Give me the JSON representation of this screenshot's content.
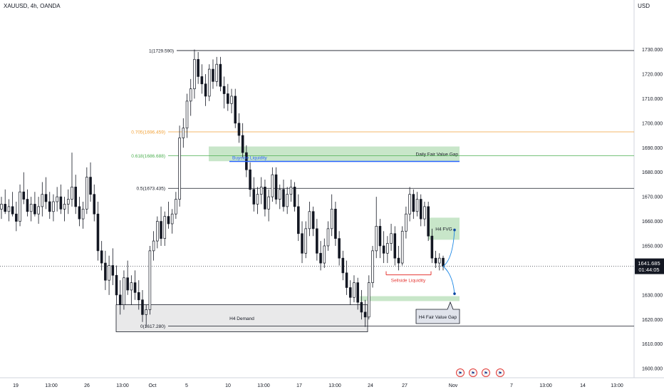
{
  "chart_data": {
    "type": "candlestick",
    "title": "XAUUSD, 4h, OANDA",
    "currency": "USD",
    "ylim": [
      1598,
      1738
    ],
    "y_ticks": [
      1600,
      1610,
      1620,
      1630,
      1640,
      1650,
      1660,
      1670,
      1680,
      1690,
      1700,
      1710,
      1720,
      1730
    ],
    "x_ticks": [
      "19",
      "13:00",
      "26",
      "13:00",
      "Oct",
      "5",
      "10",
      "13:00",
      "17",
      "13:00",
      "24",
      "27",
      "Nov",
      "7",
      "13:00",
      "14",
      "13:00"
    ],
    "candles": [
      {
        "o": 1665,
        "h": 1670,
        "l": 1661,
        "c": 1667
      },
      {
        "o": 1667,
        "h": 1673,
        "l": 1663,
        "c": 1664
      },
      {
        "o": 1664,
        "h": 1669,
        "l": 1660,
        "c": 1666
      },
      {
        "o": 1666,
        "h": 1672,
        "l": 1662,
        "c": 1663
      },
      {
        "o": 1663,
        "h": 1668,
        "l": 1656,
        "c": 1660
      },
      {
        "o": 1660,
        "h": 1675,
        "l": 1658,
        "c": 1672
      },
      {
        "o": 1672,
        "h": 1680,
        "l": 1667,
        "c": 1669
      },
      {
        "o": 1669,
        "h": 1673,
        "l": 1662,
        "c": 1664
      },
      {
        "o": 1664,
        "h": 1670,
        "l": 1660,
        "c": 1667
      },
      {
        "o": 1667,
        "h": 1672,
        "l": 1662,
        "c": 1663
      },
      {
        "o": 1663,
        "h": 1670,
        "l": 1659,
        "c": 1666
      },
      {
        "o": 1666,
        "h": 1676,
        "l": 1662,
        "c": 1671
      },
      {
        "o": 1671,
        "h": 1678,
        "l": 1665,
        "c": 1668
      },
      {
        "o": 1668,
        "h": 1672,
        "l": 1661,
        "c": 1664
      },
      {
        "o": 1664,
        "h": 1671,
        "l": 1660,
        "c": 1668
      },
      {
        "o": 1668,
        "h": 1674,
        "l": 1664,
        "c": 1670
      },
      {
        "o": 1670,
        "h": 1675,
        "l": 1663,
        "c": 1665
      },
      {
        "o": 1665,
        "h": 1670,
        "l": 1660,
        "c": 1667
      },
      {
        "o": 1667,
        "h": 1673,
        "l": 1663,
        "c": 1669
      },
      {
        "o": 1669,
        "h": 1688,
        "l": 1666,
        "c": 1674
      },
      {
        "o": 1674,
        "h": 1679,
        "l": 1663,
        "c": 1666
      },
      {
        "o": 1666,
        "h": 1670,
        "l": 1658,
        "c": 1661
      },
      {
        "o": 1661,
        "h": 1668,
        "l": 1657,
        "c": 1665
      },
      {
        "o": 1665,
        "h": 1682,
        "l": 1663,
        "c": 1678
      },
      {
        "o": 1678,
        "h": 1684,
        "l": 1668,
        "c": 1671
      },
      {
        "o": 1671,
        "h": 1675,
        "l": 1660,
        "c": 1663
      },
      {
        "o": 1663,
        "h": 1668,
        "l": 1644,
        "c": 1648
      },
      {
        "o": 1648,
        "h": 1652,
        "l": 1640,
        "c": 1643
      },
      {
        "o": 1643,
        "h": 1648,
        "l": 1632,
        "c": 1636
      },
      {
        "o": 1636,
        "h": 1646,
        "l": 1630,
        "c": 1642
      },
      {
        "o": 1642,
        "h": 1649,
        "l": 1634,
        "c": 1638
      },
      {
        "o": 1638,
        "h": 1642,
        "l": 1626,
        "c": 1630
      },
      {
        "o": 1630,
        "h": 1636,
        "l": 1622,
        "c": 1626
      },
      {
        "o": 1626,
        "h": 1640,
        "l": 1624,
        "c": 1637
      },
      {
        "o": 1637,
        "h": 1644,
        "l": 1630,
        "c": 1632
      },
      {
        "o": 1632,
        "h": 1638,
        "l": 1626,
        "c": 1635
      },
      {
        "o": 1635,
        "h": 1640,
        "l": 1628,
        "c": 1631
      },
      {
        "o": 1631,
        "h": 1636,
        "l": 1624,
        "c": 1628
      },
      {
        "o": 1628,
        "h": 1632,
        "l": 1619,
        "c": 1622
      },
      {
        "o": 1622,
        "h": 1626,
        "l": 1617,
        "c": 1624
      },
      {
        "o": 1624,
        "h": 1650,
        "l": 1622,
        "c": 1648
      },
      {
        "o": 1648,
        "h": 1656,
        "l": 1644,
        "c": 1652
      },
      {
        "o": 1652,
        "h": 1662,
        "l": 1649,
        "c": 1660
      },
      {
        "o": 1660,
        "h": 1666,
        "l": 1650,
        "c": 1653
      },
      {
        "o": 1653,
        "h": 1664,
        "l": 1650,
        "c": 1662
      },
      {
        "o": 1662,
        "h": 1668,
        "l": 1657,
        "c": 1659
      },
      {
        "o": 1659,
        "h": 1665,
        "l": 1655,
        "c": 1663
      },
      {
        "o": 1663,
        "h": 1672,
        "l": 1661,
        "c": 1669
      },
      {
        "o": 1669,
        "h": 1699,
        "l": 1666,
        "c": 1694
      },
      {
        "o": 1694,
        "h": 1702,
        "l": 1690,
        "c": 1698
      },
      {
        "o": 1698,
        "h": 1712,
        "l": 1694,
        "c": 1709
      },
      {
        "o": 1709,
        "h": 1718,
        "l": 1703,
        "c": 1714
      },
      {
        "o": 1714,
        "h": 1730,
        "l": 1710,
        "c": 1726
      },
      {
        "o": 1726,
        "h": 1729,
        "l": 1716,
        "c": 1719
      },
      {
        "o": 1719,
        "h": 1724,
        "l": 1712,
        "c": 1716
      },
      {
        "o": 1716,
        "h": 1720,
        "l": 1707,
        "c": 1711
      },
      {
        "o": 1711,
        "h": 1724,
        "l": 1709,
        "c": 1722
      },
      {
        "o": 1722,
        "h": 1726,
        "l": 1714,
        "c": 1717
      },
      {
        "o": 1717,
        "h": 1727,
        "l": 1715,
        "c": 1724
      },
      {
        "o": 1724,
        "h": 1727,
        "l": 1713,
        "c": 1715
      },
      {
        "o": 1715,
        "h": 1719,
        "l": 1706,
        "c": 1712
      },
      {
        "o": 1712,
        "h": 1716,
        "l": 1705,
        "c": 1708
      },
      {
        "o": 1708,
        "h": 1714,
        "l": 1704,
        "c": 1711
      },
      {
        "o": 1711,
        "h": 1714,
        "l": 1698,
        "c": 1700
      },
      {
        "o": 1700,
        "h": 1704,
        "l": 1692,
        "c": 1695
      },
      {
        "o": 1695,
        "h": 1700,
        "l": 1686,
        "c": 1688
      },
      {
        "o": 1688,
        "h": 1691,
        "l": 1678,
        "c": 1681
      },
      {
        "o": 1681,
        "h": 1684,
        "l": 1670,
        "c": 1673
      },
      {
        "o": 1673,
        "h": 1678,
        "l": 1664,
        "c": 1667
      },
      {
        "o": 1667,
        "h": 1674,
        "l": 1663,
        "c": 1671
      },
      {
        "o": 1671,
        "h": 1678,
        "l": 1667,
        "c": 1674
      },
      {
        "o": 1674,
        "h": 1677,
        "l": 1662,
        "c": 1665
      },
      {
        "o": 1665,
        "h": 1673,
        "l": 1660,
        "c": 1670
      },
      {
        "o": 1670,
        "h": 1682,
        "l": 1668,
        "c": 1679
      },
      {
        "o": 1679,
        "h": 1682,
        "l": 1667,
        "c": 1669
      },
      {
        "o": 1669,
        "h": 1675,
        "l": 1665,
        "c": 1673
      },
      {
        "o": 1673,
        "h": 1677,
        "l": 1664,
        "c": 1666
      },
      {
        "o": 1666,
        "h": 1674,
        "l": 1663,
        "c": 1671
      },
      {
        "o": 1671,
        "h": 1677,
        "l": 1668,
        "c": 1674
      },
      {
        "o": 1674,
        "h": 1676,
        "l": 1664,
        "c": 1666
      },
      {
        "o": 1666,
        "h": 1671,
        "l": 1652,
        "c": 1655
      },
      {
        "o": 1655,
        "h": 1660,
        "l": 1643,
        "c": 1647
      },
      {
        "o": 1647,
        "h": 1660,
        "l": 1645,
        "c": 1657
      },
      {
        "o": 1657,
        "h": 1668,
        "l": 1654,
        "c": 1664
      },
      {
        "o": 1664,
        "h": 1666,
        "l": 1654,
        "c": 1657
      },
      {
        "o": 1657,
        "h": 1661,
        "l": 1644,
        "c": 1647
      },
      {
        "o": 1647,
        "h": 1652,
        "l": 1640,
        "c": 1643
      },
      {
        "o": 1643,
        "h": 1653,
        "l": 1641,
        "c": 1650
      },
      {
        "o": 1650,
        "h": 1660,
        "l": 1648,
        "c": 1657
      },
      {
        "o": 1657,
        "h": 1671,
        "l": 1654,
        "c": 1665
      },
      {
        "o": 1665,
        "h": 1668,
        "l": 1650,
        "c": 1653
      },
      {
        "o": 1653,
        "h": 1656,
        "l": 1642,
        "c": 1645
      },
      {
        "o": 1645,
        "h": 1648,
        "l": 1636,
        "c": 1639
      },
      {
        "o": 1639,
        "h": 1644,
        "l": 1630,
        "c": 1633
      },
      {
        "o": 1633,
        "h": 1636,
        "l": 1626,
        "c": 1629
      },
      {
        "o": 1629,
        "h": 1638,
        "l": 1627,
        "c": 1635
      },
      {
        "o": 1635,
        "h": 1637,
        "l": 1624,
        "c": 1627
      },
      {
        "o": 1627,
        "h": 1632,
        "l": 1620,
        "c": 1623
      },
      {
        "o": 1623,
        "h": 1628,
        "l": 1617,
        "c": 1621
      },
      {
        "o": 1621,
        "h": 1638,
        "l": 1620,
        "c": 1635
      },
      {
        "o": 1635,
        "h": 1650,
        "l": 1633,
        "c": 1648
      },
      {
        "o": 1648,
        "h": 1670,
        "l": 1645,
        "c": 1658
      },
      {
        "o": 1658,
        "h": 1661,
        "l": 1645,
        "c": 1650
      },
      {
        "o": 1650,
        "h": 1656,
        "l": 1643,
        "c": 1647
      },
      {
        "o": 1647,
        "h": 1654,
        "l": 1643,
        "c": 1651
      },
      {
        "o": 1651,
        "h": 1659,
        "l": 1648,
        "c": 1655
      },
      {
        "o": 1655,
        "h": 1658,
        "l": 1642,
        "c": 1645
      },
      {
        "o": 1645,
        "h": 1650,
        "l": 1640,
        "c": 1643
      },
      {
        "o": 1643,
        "h": 1658,
        "l": 1642,
        "c": 1656
      },
      {
        "o": 1656,
        "h": 1666,
        "l": 1653,
        "c": 1663
      },
      {
        "o": 1663,
        "h": 1674,
        "l": 1660,
        "c": 1671
      },
      {
        "o": 1671,
        "h": 1673,
        "l": 1661,
        "c": 1664
      },
      {
        "o": 1664,
        "h": 1672,
        "l": 1662,
        "c": 1669
      },
      {
        "o": 1669,
        "h": 1671,
        "l": 1658,
        "c": 1661
      },
      {
        "o": 1661,
        "h": 1668,
        "l": 1658,
        "c": 1666
      },
      {
        "o": 1666,
        "h": 1668,
        "l": 1652,
        "c": 1654
      },
      {
        "o": 1654,
        "h": 1657,
        "l": 1643,
        "c": 1645
      },
      {
        "o": 1645,
        "h": 1648,
        "l": 1641,
        "c": 1643
      },
      {
        "o": 1643,
        "h": 1647,
        "l": 1640,
        "c": 1645
      },
      {
        "o": 1645,
        "h": 1646,
        "l": 1640,
        "c": 1641.7
      }
    ],
    "levels": [
      {
        "label": "1(1729.590)",
        "value": 1729.59,
        "color": "#131722"
      },
      {
        "label": "0.705(1696.459)",
        "value": 1696.46,
        "color": "#f2a33a"
      },
      {
        "label": "0.618(1686.688)",
        "value": 1686.69,
        "color": "#4caf50"
      },
      {
        "label": "0.5(1673.435)",
        "value": 1673.44,
        "color": "#131722"
      },
      {
        "label": "0(1617.280)",
        "value": 1617.28,
        "color": "#131722"
      }
    ],
    "zones": [
      {
        "label": "Daily Fair Value Gap",
        "from": 1684.5,
        "to": 1690.5,
        "color": "#c8e6c9"
      },
      {
        "label": "H4 FVG",
        "from": 1652.5,
        "to": 1661.5,
        "color": "#c8e6c9"
      },
      {
        "label": "",
        "from": 1627.5,
        "to": 1629.5,
        "color": "#c8e6c9"
      },
      {
        "label": "H4 Demand",
        "from": 1615,
        "to": 1626,
        "color": "#e9e9ea"
      }
    ],
    "annotations": {
      "buyside": "Buyside Liquidity",
      "buyside_value": 1684.4,
      "sellside": "Sellside Liquidity",
      "sellside_value": 1638.2,
      "h4_fvg_callout": "H4 Fair Value Gap"
    },
    "last_price": "1641.685",
    "countdown": "01:44:05",
    "colors": {
      "up": "#ffffff",
      "down": "#131722",
      "accent": "#2962ff",
      "sell": "#e53935"
    }
  }
}
